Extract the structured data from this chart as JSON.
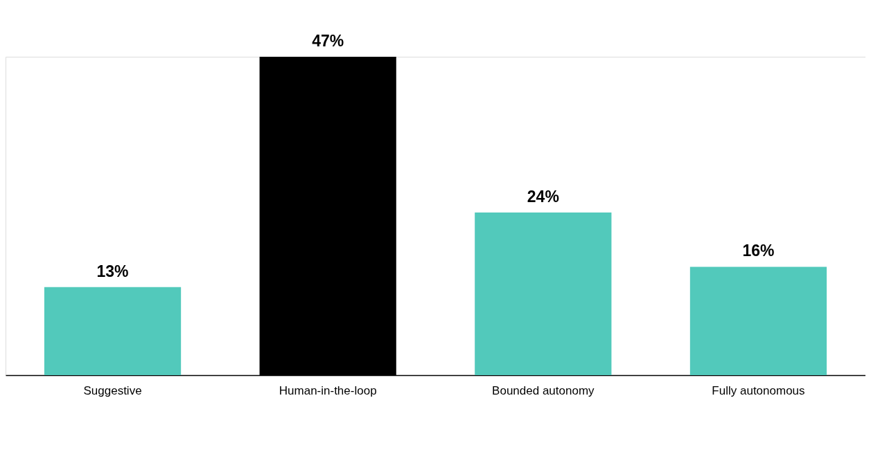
{
  "chart_data": {
    "type": "bar",
    "categories": [
      "Suggestive",
      "Human-in-the-loop",
      "Bounded autonomy",
      "Fully autonomous"
    ],
    "values": [
      13,
      47,
      24,
      16
    ],
    "colors": [
      "#52c9bb",
      "#000000",
      "#52c9bb",
      "#52c9bb"
    ],
    "value_labels": [
      "13%",
      "47%",
      "24%",
      "16%"
    ],
    "tick_labels": "x",
    "grid": false,
    "legend": false
  }
}
